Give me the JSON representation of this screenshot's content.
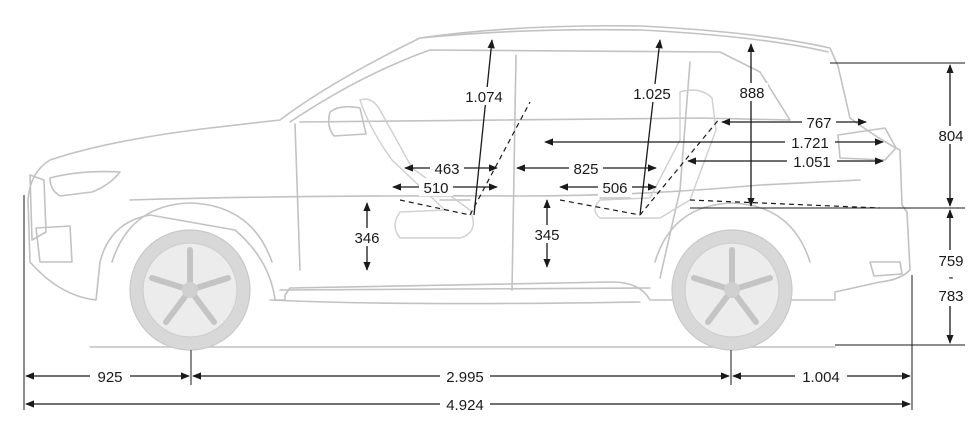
{
  "colors": {
    "car_outline": "#c2c2c2",
    "car_fill": "#d8d8d8",
    "dimension_lines": "#1a1a1a",
    "background": "#ffffff"
  },
  "dimensions": {
    "front_overhang": "925",
    "wheelbase": "2.995",
    "rear_overhang": "1.004",
    "overall_length": "4.924",
    "front_headroom": "1.074",
    "rear_headroom": "1.025",
    "cargo_height": "888",
    "cargo_length_short": "767",
    "cargo_length_long": "1.721",
    "cargo_length_mid": "1.051",
    "front_legroom": "463",
    "front_seat_depth": "510",
    "rear_legroom": "825",
    "rear_seat_depth": "506",
    "front_seat_height": "346",
    "rear_seat_height": "345",
    "rear_upper_height": "804",
    "ground_clearance_min": "759",
    "ground_clearance_sep": "-",
    "ground_clearance_max": "783"
  }
}
